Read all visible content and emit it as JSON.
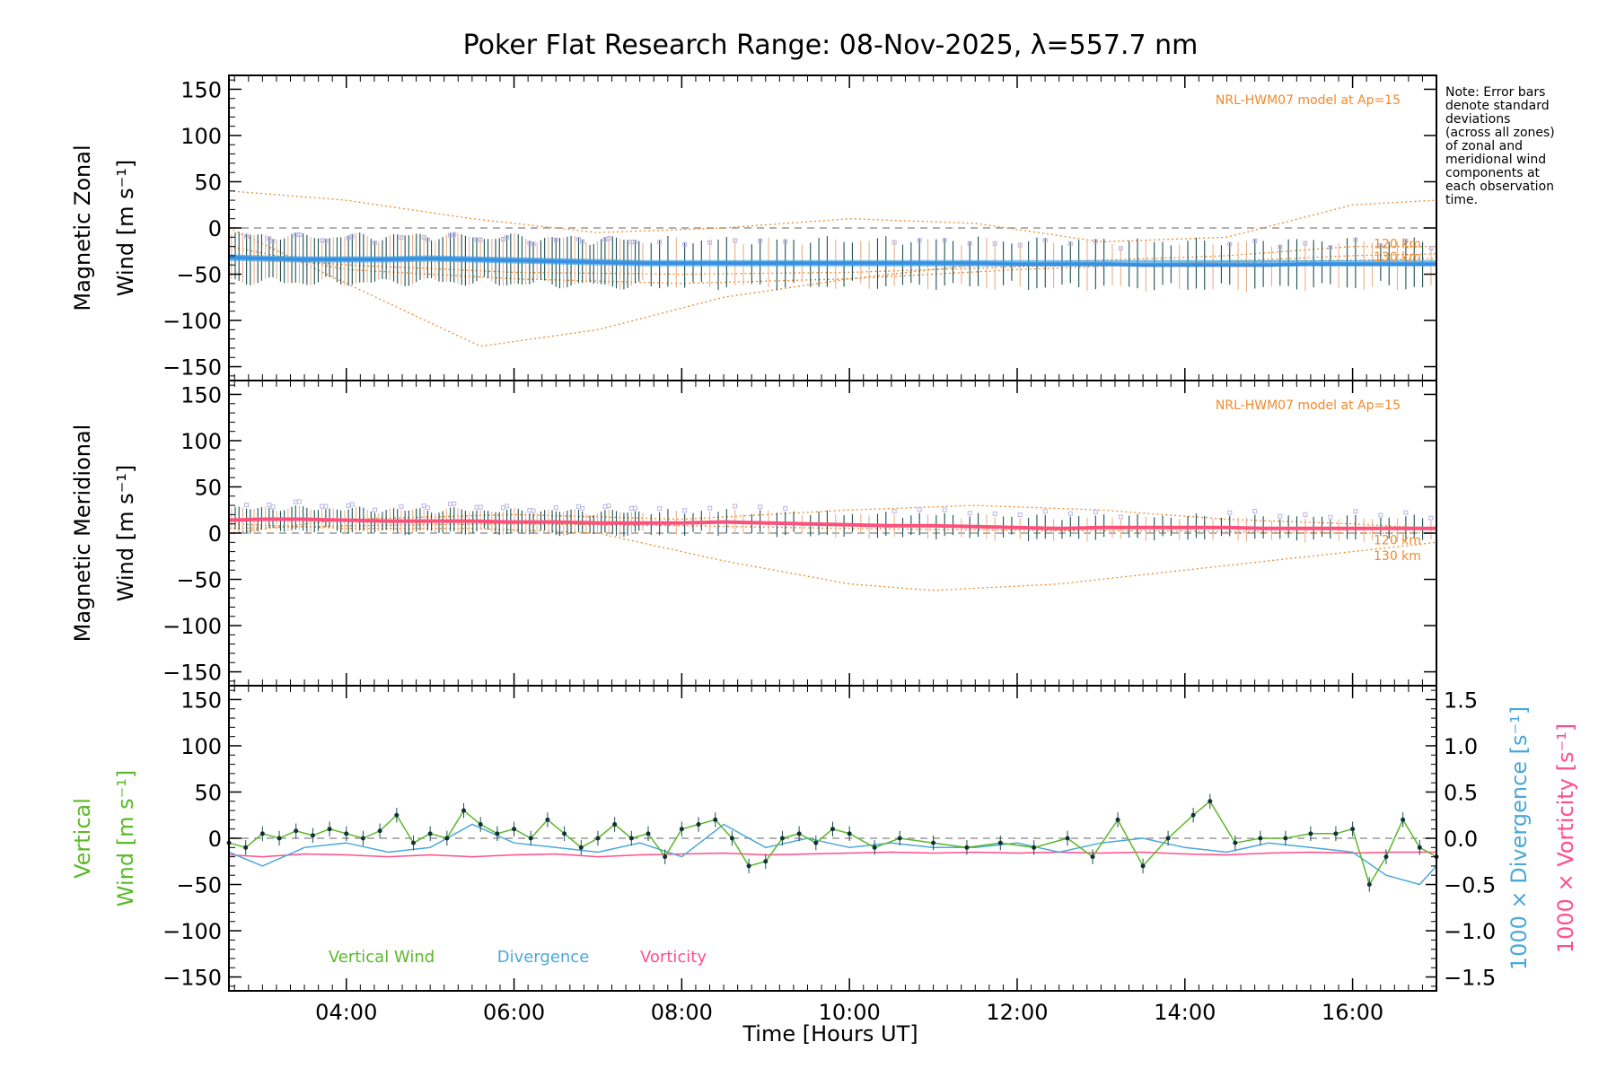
{
  "note": "Note: Error bars\ndenote standard\ndeviations\n(across all zones)\nof zonal and\nmeridional wind\ncomponents at\neach observation\ntime.",
  "colors": {
    "zonal": "#2a63d8",
    "zonal_band": "#3da4e6",
    "meridional": "#ff4f7b",
    "vertical": "#5cb82a",
    "divergence": "#4aa8d8",
    "vorticity": "#ff4f88",
    "model": "#f08a2c",
    "errorbar": "#1f4f4f",
    "scatter": "#b9b3e6"
  },
  "chart_data": {
    "type": "line",
    "title": "Poker Flat Research Range: 08-Nov-2025, λ=557.7 nm",
    "xlabel": "Time [Hours UT]",
    "xlim": [
      2.6,
      17.0
    ],
    "x_ticks": [
      "04:00",
      "06:00",
      "08:00",
      "10:00",
      "12:00",
      "14:00",
      "16:00"
    ],
    "x_tick_values": [
      4,
      6,
      8,
      10,
      12,
      14,
      16
    ],
    "y_ticks": [
      "150",
      "100",
      "50",
      "0",
      "−50",
      "−100",
      "−150"
    ],
    "y_tick_values": [
      150,
      100,
      50,
      0,
      -50,
      -100,
      -150
    ],
    "ylim": [
      -165,
      165
    ],
    "panels": [
      {
        "name": "zonal",
        "ylabel_line1": "Magnetic Zonal",
        "ylabel_line2": "Wind [m s⁻¹]",
        "model_label": "NRL-HWM07 model at Ap=15",
        "model_km_labels": [
          "120 km",
          "130 km"
        ],
        "series": {
          "name": "Zonal Wind",
          "x": [
            2.6,
            3.0,
            3.5,
            4.0,
            4.5,
            5.0,
            5.5,
            6.0,
            6.5,
            7.0,
            7.5,
            8.0,
            8.5,
            9.0,
            9.5,
            10.0,
            10.5,
            11.0,
            11.5,
            12.0,
            12.5,
            13.0,
            13.5,
            14.0,
            14.5,
            15.0,
            15.5,
            16.0,
            16.5,
            17.0
          ],
          "y": [
            -32,
            -33,
            -34,
            -34,
            -34,
            -33,
            -34,
            -35,
            -36,
            -37,
            -38,
            -38,
            -38,
            -38,
            -38,
            -38,
            -38,
            -38,
            -38,
            -39,
            -39,
            -39,
            -40,
            -40,
            -40,
            -40,
            -39,
            -39,
            -39,
            -39
          ],
          "err": 25
        },
        "model_curves": [
          {
            "x": [
              2.6,
              4.0,
              5.6,
              7.0,
              8.5,
              10.0,
              11.5,
              13.0,
              14.5,
              16.0,
              17.0
            ],
            "y": [
              0,
              -60,
              -128,
              -110,
              -75,
              -55,
              -40,
              -35,
              -30,
              -20,
              -20
            ]
          },
          {
            "x": [
              2.6,
              4.0,
              5.5,
              7.0,
              8.5,
              10.0,
              11.5,
              13.0,
              14.5,
              16.0,
              17.0
            ],
            "y": [
              40,
              30,
              10,
              -5,
              0,
              10,
              5,
              -15,
              -10,
              25,
              30
            ]
          },
          {
            "x": [
              2.6,
              4.0,
              6.0,
              8.0,
              10.0,
              12.0,
              14.0,
              16.0,
              17.0
            ],
            "y": [
              -20,
              -45,
              -55,
              -60,
              -55,
              -45,
              -38,
              -30,
              -28
            ]
          },
          {
            "x": [
              2.6,
              4.0,
              6.0,
              8.0,
              10.0,
              12.0,
              14.0,
              16.0,
              17.0
            ],
            "y": [
              -30,
              -40,
              -48,
              -50,
              -48,
              -42,
              -38,
              -35,
              -33
            ]
          }
        ]
      },
      {
        "name": "meridional",
        "ylabel_line1": "Magnetic Meridional",
        "ylabel_line2": "Wind [m s⁻¹]",
        "model_label": "NRL-HWM07 model at Ap=15",
        "model_km_labels": [
          "120 km",
          "130 km"
        ],
        "series": {
          "name": "Meridional Wind",
          "x": [
            2.6,
            3.0,
            3.5,
            4.0,
            4.5,
            5.0,
            5.5,
            6.0,
            6.5,
            7.0,
            7.5,
            8.0,
            8.5,
            9.0,
            9.5,
            10.0,
            10.5,
            11.0,
            11.5,
            12.0,
            12.5,
            13.0,
            13.5,
            14.0,
            14.5,
            15.0,
            15.5,
            16.0,
            16.5,
            17.0
          ],
          "y": [
            14,
            15,
            15,
            14,
            13,
            13,
            13,
            12,
            12,
            11,
            11,
            11,
            12,
            11,
            10,
            9,
            8,
            8,
            7,
            6,
            5,
            6,
            6,
            6,
            6,
            5,
            5,
            5,
            5,
            5
          ],
          "err": 12
        },
        "model_curves": [
          {
            "x": [
              2.6,
              4.0,
              5.5,
              7.0,
              8.5,
              10.0,
              11.0,
              12.5,
              14.0,
              15.5,
              17.0
            ],
            "y": [
              10,
              5,
              5,
              0,
              -30,
              -55,
              -62,
              -55,
              -40,
              -25,
              -10
            ]
          },
          {
            "x": [
              2.6,
              4.0,
              6.0,
              8.0,
              10.0,
              11.5,
              13.0,
              14.5,
              16.0,
              17.0
            ],
            "y": [
              0,
              15,
              20,
              15,
              25,
              30,
              25,
              15,
              10,
              5
            ]
          },
          {
            "x": [
              2.6,
              4.0,
              6.0,
              8.0,
              10.0,
              12.0,
              14.0,
              16.0,
              17.0
            ],
            "y": [
              5,
              8,
              10,
              8,
              5,
              3,
              2,
              0,
              0
            ]
          }
        ]
      },
      {
        "name": "vertical",
        "ylabel_line1": "Vertical",
        "ylabel_line2": "Wind [m s⁻¹]",
        "right_ylim": [
          -1.65,
          1.65
        ],
        "right_ticks": [
          "1.5",
          "1.0",
          "0.5",
          "0.0",
          "−0.5",
          "−1.0",
          "−1.5"
        ],
        "right_tick_values": [
          1.5,
          1.0,
          0.5,
          0.0,
          -0.5,
          -1.0,
          -1.5
        ],
        "right_label_div": "1000 × Divergence [s⁻¹]",
        "right_label_vort": "1000 × Vorticity [s⁻¹]",
        "legend": [
          "Vertical Wind",
          "Divergence",
          "Vorticity"
        ],
        "vertical": {
          "x": [
            2.6,
            2.8,
            3.0,
            3.2,
            3.4,
            3.6,
            3.8,
            4.0,
            4.2,
            4.4,
            4.6,
            4.8,
            5.0,
            5.2,
            5.4,
            5.6,
            5.8,
            6.0,
            6.2,
            6.4,
            6.6,
            6.8,
            7.0,
            7.2,
            7.4,
            7.6,
            7.8,
            8.0,
            8.2,
            8.4,
            8.6,
            8.8,
            9.0,
            9.2,
            9.4,
            9.6,
            9.8,
            10.0,
            10.3,
            10.6,
            11.0,
            11.4,
            11.8,
            12.2,
            12.6,
            12.9,
            13.2,
            13.5,
            13.8,
            14.1,
            14.3,
            14.6,
            14.9,
            15.2,
            15.5,
            15.8,
            16.0,
            16.2,
            16.4,
            16.6,
            16.8,
            17.0
          ],
          "y": [
            -5,
            -10,
            5,
            0,
            8,
            3,
            10,
            5,
            0,
            8,
            25,
            -5,
            5,
            0,
            30,
            15,
            5,
            10,
            0,
            20,
            5,
            -10,
            0,
            15,
            0,
            5,
            -20,
            10,
            15,
            20,
            0,
            -30,
            -25,
            0,
            5,
            -5,
            10,
            5,
            -10,
            0,
            -5,
            -10,
            -5,
            -10,
            0,
            -20,
            20,
            -30,
            0,
            25,
            40,
            -5,
            0,
            0,
            5,
            5,
            10,
            -50,
            -20,
            20,
            -10,
            -20
          ]
        },
        "divergence": {
          "x": [
            2.6,
            3.0,
            3.5,
            4.0,
            4.5,
            5.0,
            5.5,
            6.0,
            6.5,
            7.0,
            7.5,
            8.0,
            8.5,
            9.0,
            9.5,
            10.0,
            10.5,
            11.0,
            11.5,
            12.0,
            12.5,
            13.0,
            13.5,
            14.0,
            14.5,
            15.0,
            15.5,
            16.0,
            16.4,
            16.8,
            17.0
          ],
          "y": [
            -0.15,
            -0.3,
            -0.1,
            -0.05,
            -0.15,
            -0.1,
            0.15,
            -0.05,
            -0.1,
            -0.15,
            -0.05,
            -0.2,
            0.15,
            -0.1,
            0.0,
            -0.1,
            -0.05,
            -0.1,
            -0.1,
            -0.05,
            -0.15,
            -0.05,
            0.0,
            -0.1,
            -0.15,
            -0.05,
            -0.1,
            -0.15,
            -0.4,
            -0.5,
            -0.3
          ]
        },
        "vorticity": {
          "x": [
            2.6,
            3.0,
            3.5,
            4.0,
            4.5,
            5.0,
            5.5,
            6.0,
            6.5,
            7.0,
            7.5,
            8.0,
            8.5,
            9.0,
            9.5,
            10.0,
            10.5,
            11.0,
            11.5,
            12.0,
            12.5,
            13.0,
            13.5,
            14.0,
            14.5,
            15.0,
            15.5,
            16.0,
            16.5,
            17.0
          ],
          "y": [
            -0.18,
            -0.2,
            -0.17,
            -0.18,
            -0.2,
            -0.18,
            -0.2,
            -0.18,
            -0.17,
            -0.2,
            -0.18,
            -0.17,
            -0.16,
            -0.18,
            -0.17,
            -0.16,
            -0.15,
            -0.16,
            -0.15,
            -0.16,
            -0.15,
            -0.16,
            -0.15,
            -0.17,
            -0.18,
            -0.16,
            -0.15,
            -0.16,
            -0.15,
            -0.15
          ]
        }
      }
    ]
  }
}
